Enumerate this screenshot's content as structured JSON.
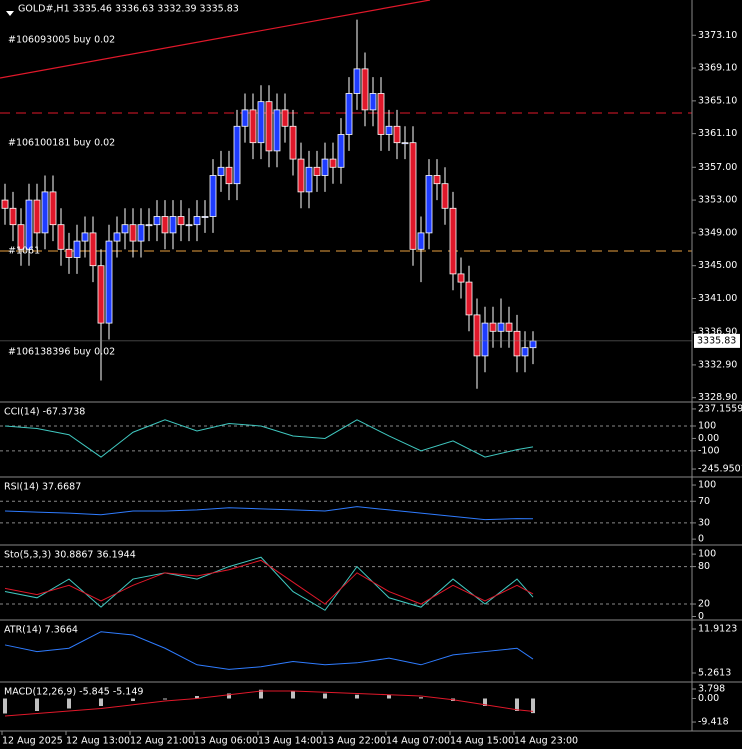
{
  "chart_data": [
    {
      "type": "candlestick",
      "title": "GOLD#,H1  3335.46 3336.63 3332.39 3335.83",
      "annotations": [
        "#106093005 buy 0.02",
        "#106100181 buy 0.02",
        "#1061",
        "#106138396 buy 0.02"
      ],
      "open": [
        3353,
        3352,
        3350,
        3347,
        3353,
        3349,
        3354,
        3350,
        3347,
        3346,
        3348,
        3349,
        3345,
        3338,
        3348,
        3349,
        3350,
        3348,
        3350,
        3350,
        3351,
        3349,
        3351,
        3350,
        3350,
        3351,
        3351,
        3356,
        3357,
        3355,
        3362,
        3364,
        3360,
        3365,
        3359,
        3364,
        3362,
        3358,
        3354,
        3357,
        3356,
        3358,
        3357,
        3361,
        3366,
        3369,
        3364,
        3366,
        3361,
        3362,
        3360,
        3360,
        3347,
        3349,
        3356,
        3355,
        3352,
        3344,
        3343,
        3339,
        3334,
        3338,
        3337,
        3338,
        3337,
        3334,
        3335
      ],
      "high": [
        3355,
        3354,
        3352,
        3355,
        3355,
        3356,
        3356,
        3352,
        3349,
        3350,
        3351,
        3351,
        3347,
        3350,
        3351,
        3352,
        3352,
        3352,
        3352,
        3353,
        3353,
        3353,
        3353,
        3352,
        3353,
        3353,
        3358,
        3359,
        3359,
        3364,
        3366,
        3366,
        3367,
        3367,
        3366,
        3366,
        3364,
        3360,
        3359,
        3359,
        3360,
        3360,
        3363,
        3368,
        3375,
        3371,
        3368,
        3368,
        3364,
        3364,
        3362,
        3362,
        3351,
        3358,
        3358,
        3357,
        3354,
        3346,
        3345,
        3341,
        3340,
        3340,
        3341,
        3340,
        3339,
        3337,
        3337
      ],
      "low": [
        3350,
        3348,
        3345,
        3345,
        3347,
        3347,
        3348,
        3345,
        3344,
        3344,
        3346,
        3343,
        3331,
        3336,
        3346,
        3347,
        3346,
        3346,
        3348,
        3348,
        3347,
        3347,
        3348,
        3348,
        3348,
        3349,
        3349,
        3354,
        3353,
        3353,
        3360,
        3358,
        3358,
        3357,
        3357,
        3360,
        3356,
        3352,
        3352,
        3354,
        3354,
        3355,
        3355,
        3359,
        3364,
        3362,
        3362,
        3359,
        3359,
        3358,
        3358,
        3345,
        3343,
        3347,
        3353,
        3350,
        3342,
        3341,
        3337,
        3330,
        3332,
        3335,
        3335,
        3335,
        3332,
        3332,
        3333
      ],
      "close": [
        3352,
        3350,
        3347,
        3353,
        3349,
        3354,
        3350,
        3347,
        3346,
        3348,
        3349,
        3345,
        3338,
        3348,
        3349,
        3350,
        3348,
        3350,
        3350,
        3351,
        3349,
        3351,
        3350,
        3350,
        3351,
        3351,
        3356,
        3357,
        3355,
        3362,
        3364,
        3360,
        3365,
        3359,
        3364,
        3362,
        3358,
        3354,
        3357,
        3356,
        3358,
        3357,
        3361,
        3366,
        3369,
        3364,
        3366,
        3361,
        3362,
        3360,
        3360,
        3347,
        3349,
        3356,
        3355,
        3352,
        3344,
        3343,
        3339,
        3334,
        3338,
        3337,
        3338,
        3337,
        3334,
        3335,
        3335.83
      ],
      "up_color": "#1e3cff",
      "down_color": "#e0182a",
      "ylim": [
        3328.5,
        3377.4
      ],
      "yticks": [
        {
          "value": 3373.1,
          "label": "3373.10"
        },
        {
          "value": 3369.1,
          "label": "3369.10"
        },
        {
          "value": 3365.1,
          "label": "3365.10"
        },
        {
          "value": 3361.1,
          "label": "3361.10"
        },
        {
          "value": 3357,
          "label": "3357.00"
        },
        {
          "value": 3353,
          "label": "3353.00"
        },
        {
          "value": 3349,
          "label": "3349.00"
        },
        {
          "value": 3345,
          "label": "3345.00"
        },
        {
          "value": 3341,
          "label": "3341.00"
        },
        {
          "value": 3336.9,
          "label": "3336.90"
        },
        {
          "value": 3332.9,
          "label": "3332.90"
        },
        {
          "value": 3328.9,
          "label": "3328.90"
        }
      ],
      "xticks": [
        {
          "value": 0,
          "label": "12 Aug 2025"
        },
        {
          "value": 8,
          "label": "12 Aug 13:00"
        },
        {
          "value": 16,
          "label": "12 Aug 21:00"
        },
        {
          "value": 24,
          "label": "13 Aug 06:00"
        },
        {
          "value": 32,
          "label": "13 Aug 14:00"
        },
        {
          "value": 40,
          "label": "13 Aug 22:00"
        },
        {
          "value": 48,
          "label": "14 Aug 07:00"
        },
        {
          "value": 56,
          "label": "14 Aug 15:00"
        },
        {
          "value": 64,
          "label": "14 Aug 23:00"
        }
      ]
    },
    {
      "type": "line",
      "title": "CCI(14) -67.3738",
      "x": [
        0,
        4,
        8,
        12,
        16,
        20,
        24,
        28,
        32,
        36,
        40,
        44,
        48,
        52,
        56,
        60,
        64,
        66
      ],
      "series": [
        {
          "color": "#40c8c0",
          "values": [
            100,
            80,
            30,
            -150,
            50,
            150,
            60,
            120,
            100,
            20,
            0,
            150,
            20,
            -100,
            -20,
            -150,
            -90,
            -67.37
          ]
        }
      ],
      "ylim": [
        -302,
        285
      ],
      "yticks": [
        237.1559,
        100,
        {
          "value": 0,
          "label": "0.00"
        },
        -100,
        -245.9501
      ],
      "levels": [
        100,
        -100
      ]
    },
    {
      "type": "line",
      "title": "RSI(14) 37.6687",
      "x": [
        0,
        4,
        8,
        12,
        16,
        20,
        24,
        28,
        32,
        36,
        40,
        44,
        48,
        52,
        56,
        60,
        64,
        66
      ],
      "series": [
        {
          "color": "#2f7cff",
          "values": [
            52,
            50,
            48,
            45,
            52,
            52,
            54,
            58,
            56,
            54,
            52,
            60,
            54,
            48,
            42,
            36,
            38,
            37.67
          ]
        }
      ],
      "ylim": [
        -9,
        113
      ],
      "yticks": [
        100,
        70,
        30,
        0
      ],
      "levels": [
        70,
        30
      ]
    },
    {
      "type": "line",
      "title": "Sto(5,3,3) 30.8867 36.1944",
      "x": [
        0,
        4,
        8,
        12,
        16,
        20,
        24,
        28,
        32,
        36,
        40,
        44,
        48,
        52,
        56,
        60,
        64,
        66
      ],
      "series": [
        {
          "color": "#40c8c0",
          "values": [
            40,
            30,
            60,
            15,
            60,
            70,
            60,
            80,
            95,
            40,
            10,
            80,
            30,
            15,
            60,
            20,
            60,
            30.89
          ]
        },
        {
          "color": "#e0182a",
          "values": [
            45,
            35,
            50,
            25,
            50,
            70,
            65,
            75,
            90,
            55,
            20,
            70,
            40,
            20,
            50,
            25,
            50,
            36.19
          ]
        }
      ],
      "ylim": [
        -4,
        113
      ],
      "yticks": [
        100,
        80,
        20,
        0
      ],
      "levels": [
        80,
        20
      ]
    },
    {
      "type": "line",
      "title": "ATR(14) 7.3664",
      "x": [
        0,
        4,
        8,
        12,
        16,
        20,
        24,
        28,
        32,
        36,
        40,
        44,
        48,
        52,
        56,
        60,
        64,
        66
      ],
      "series": [
        {
          "color": "#2f7cff",
          "values": [
            9.5,
            8.5,
            9,
            11.5,
            11,
            9,
            6.5,
            5.8,
            6.2,
            7,
            6.5,
            6.8,
            7.5,
            6.5,
            8,
            8.5,
            9,
            7.37
          ]
        }
      ],
      "ylim": [
        4.05,
        13.12
      ],
      "yticks": [
        11.9123,
        5.2613
      ],
      "levels": []
    },
    {
      "type": "macd",
      "title": "MACD(12,26,9) -5.845 -5.149",
      "x": [
        0,
        4,
        8,
        12,
        16,
        20,
        24,
        28,
        32,
        36,
        40,
        44,
        48,
        52,
        56,
        60,
        64,
        66
      ],
      "series": [
        {
          "color": "#c0c0c0",
          "values": [
            -6,
            -5,
            -4,
            -3,
            -1,
            0,
            1,
            2,
            3.5,
            3,
            2,
            1.5,
            1.5,
            0.5,
            -1,
            -3,
            -5,
            -5.85
          ]
        },
        {
          "color": "#e0182a",
          "values": [
            -7,
            -6,
            -5,
            -4,
            -2.5,
            -1,
            0,
            1.5,
            3,
            3,
            2.5,
            2,
            1.5,
            1,
            -0.5,
            -2.5,
            -4.5,
            -5.15
          ]
        }
      ],
      "ylim": [
        -13,
        6.2
      ],
      "yticks": [
        3.798,
        {
          "value": 0,
          "label": "0.00"
        },
        -9.418
      ],
      "levels": []
    }
  ]
}
